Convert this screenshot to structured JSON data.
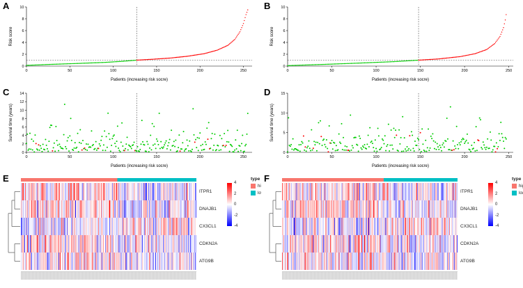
{
  "panels": [
    {
      "letter": "A"
    },
    {
      "letter": "B"
    },
    {
      "letter": "C"
    },
    {
      "letter": "D"
    },
    {
      "letter": "E"
    },
    {
      "letter": "F"
    }
  ],
  "chart_data": [
    {
      "panel": "A",
      "type": "scatter",
      "variant": "risk_curve",
      "title": "",
      "xlabel": "Patients (increasing risk socre)",
      "ylabel": "Risk score",
      "xlim": [
        0,
        260
      ],
      "ylim": [
        0,
        10
      ],
      "xticks": [
        0,
        50,
        100,
        150,
        200,
        250
      ],
      "yticks": [
        0,
        2,
        4,
        6,
        8,
        10
      ],
      "n_patients": 256,
      "cutoff_index": 127,
      "threshold_y": 1,
      "low_color": "#00CC00",
      "high_color": "#FF0000",
      "curve_points": [
        [
          0,
          0.12
        ],
        [
          30,
          0.3
        ],
        [
          60,
          0.45
        ],
        [
          90,
          0.62
        ],
        [
          110,
          0.8
        ],
        [
          127,
          1.0
        ],
        [
          145,
          1.15
        ],
        [
          165,
          1.35
        ],
        [
          185,
          1.65
        ],
        [
          205,
          2.1
        ],
        [
          220,
          2.7
        ],
        [
          232,
          3.5
        ],
        [
          240,
          4.5
        ],
        [
          246,
          5.8
        ],
        [
          250,
          7.2
        ],
        [
          253,
          8.7
        ],
        [
          256,
          9.9
        ]
      ]
    },
    {
      "panel": "B",
      "type": "scatter",
      "variant": "risk_curve",
      "title": "",
      "xlabel": "Patients (increasing risk socre)",
      "ylabel": "Risk score",
      "xlim": [
        0,
        255
      ],
      "ylim": [
        0,
        10
      ],
      "xticks": [
        0,
        50,
        100,
        150,
        200,
        250
      ],
      "yticks": [
        0,
        2,
        4,
        6,
        8,
        10
      ],
      "n_patients": 248,
      "cutoff_index": 148,
      "threshold_y": 1,
      "low_color": "#00CC00",
      "high_color": "#FF0000",
      "curve_points": [
        [
          0,
          0.08
        ],
        [
          40,
          0.28
        ],
        [
          80,
          0.5
        ],
        [
          120,
          0.75
        ],
        [
          148,
          1.0
        ],
        [
          170,
          1.2
        ],
        [
          195,
          1.6
        ],
        [
          212,
          2.1
        ],
        [
          225,
          2.8
        ],
        [
          234,
          3.8
        ],
        [
          240,
          5.0
        ],
        [
          244,
          6.5
        ],
        [
          246,
          7.8
        ],
        [
          248,
          9.6
        ]
      ]
    },
    {
      "panel": "C",
      "type": "scatter",
      "variant": "survival_scatter",
      "title": "",
      "xlabel": "Patients (increasing risk socre)",
      "ylabel": "Survival time (years)",
      "xlim": [
        0,
        260
      ],
      "ylim": [
        0,
        14
      ],
      "xticks": [
        0,
        50,
        100,
        150,
        200,
        250
      ],
      "yticks": [
        0,
        2,
        4,
        6,
        8,
        10,
        12,
        14
      ],
      "n_patients": 256,
      "cutoff_index": 127,
      "seed": 42,
      "alive_color": "#00CC00",
      "dead_color": "#FF0000",
      "dead_fraction": 0.05,
      "mean_years": 2.2,
      "max_years": 13.6
    },
    {
      "panel": "D",
      "type": "scatter",
      "variant": "survival_scatter",
      "title": "",
      "xlabel": "Patients (increasing risk socre)",
      "ylabel": "Survival time (years)",
      "xlim": [
        0,
        255
      ],
      "ylim": [
        0,
        15
      ],
      "xticks": [
        0,
        50,
        100,
        150,
        200,
        250
      ],
      "yticks": [
        0,
        5,
        10,
        15
      ],
      "n_patients": 248,
      "cutoff_index": 148,
      "seed": 7,
      "alive_color": "#00CC00",
      "dead_color": "#FF0000",
      "dead_fraction": 0.05,
      "mean_years": 2.3,
      "max_years": 14.6
    },
    {
      "panel": "E",
      "type": "heatmap",
      "variant": "heatmap",
      "genes": [
        "ITPR1",
        "DNAJB1",
        "CX3CL1",
        "CDKN2A",
        "ATG9B"
      ],
      "n_samples": 256,
      "high_fraction": 0.55,
      "seed": 11,
      "annotation": {
        "title": "type",
        "high_label": "high",
        "low_label": "low",
        "high_color": "#F8766D",
        "low_color": "#00BFC4"
      },
      "colorbar_ticks": [
        4,
        2,
        0,
        -2,
        -4
      ],
      "scale_colors": {
        "max": "#FF0000",
        "mid": "#FFFFFF",
        "min": "#0000FF"
      },
      "gene_effects": [
        [
          0.45,
          -0.25
        ],
        [
          0.5,
          -0.2
        ],
        [
          -0.35,
          0.3
        ],
        [
          0.3,
          -0.3
        ],
        [
          0.25,
          -0.2
        ]
      ]
    },
    {
      "panel": "F",
      "type": "heatmap",
      "variant": "heatmap",
      "genes": [
        "ITPR1",
        "DNAJB1",
        "CX3CL1",
        "CDKN2A",
        "ATG9B"
      ],
      "n_samples": 248,
      "high_fraction": 0.58,
      "seed": 23,
      "annotation": {
        "title": "type",
        "high_label": "high",
        "low_label": "low",
        "high_color": "#F8766D",
        "low_color": "#00BFC4"
      },
      "colorbar_ticks": [
        4,
        2,
        0,
        -2,
        -4
      ],
      "scale_colors": {
        "max": "#FF0000",
        "mid": "#FFFFFF",
        "min": "#0000FF"
      },
      "gene_effects": [
        [
          0.4,
          -0.25
        ],
        [
          0.45,
          -0.2
        ],
        [
          -0.3,
          0.3
        ],
        [
          0.3,
          -0.25
        ],
        [
          0.25,
          -0.2
        ]
      ]
    }
  ]
}
